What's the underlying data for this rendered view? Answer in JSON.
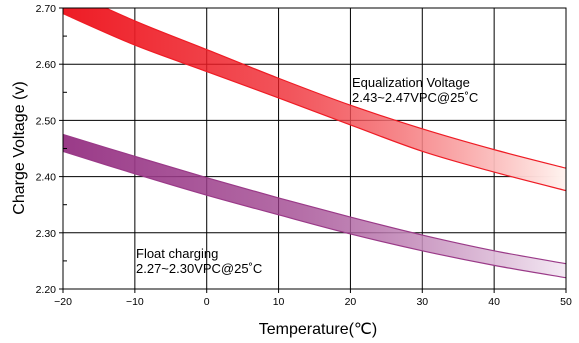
{
  "chart_data": {
    "type": "area",
    "title": "",
    "xlabel": "Temperature(℃)",
    "ylabel": "Charge Voltage  (v)",
    "xlim": [
      -20,
      50
    ],
    "ylim": [
      2.2,
      2.7
    ],
    "x_ticks": [
      "−20",
      "−10",
      "0",
      "10",
      "20",
      "30",
      "40",
      "50"
    ],
    "y_ticks": [
      "2.20",
      "2.30",
      "2.40",
      "2.50",
      "2.60",
      "2.70"
    ],
    "grid": true,
    "series": [
      {
        "name": "Equalization Voltage",
        "note": "2.43~2.47VPC@25˚C",
        "color_dark": "#ee1c25",
        "color_light": "#fff4f0",
        "x": [
          -20,
          -10,
          0,
          10,
          20,
          30,
          40,
          50
        ],
        "upper": [
          2.735,
          2.677,
          2.626,
          2.575,
          2.527,
          2.485,
          2.448,
          2.415
        ],
        "lower": [
          2.69,
          2.634,
          2.587,
          2.54,
          2.492,
          2.445,
          2.408,
          2.375
        ]
      },
      {
        "name": "Float charging",
        "note": "2.27~2.30VPC@25˚C",
        "color_dark": "#9a3a88",
        "color_light": "#f4eaf4",
        "x": [
          -20,
          -10,
          0,
          10,
          20,
          30,
          40,
          50
        ],
        "upper": [
          2.475,
          2.436,
          2.398,
          2.362,
          2.328,
          2.296,
          2.268,
          2.245
        ],
        "lower": [
          2.445,
          2.405,
          2.367,
          2.332,
          2.298,
          2.268,
          2.242,
          2.22
        ]
      }
    ]
  }
}
